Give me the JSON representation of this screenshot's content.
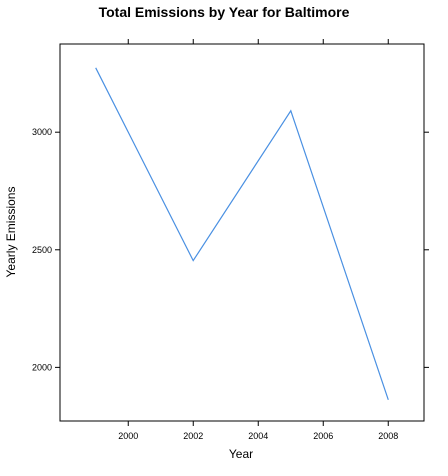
{
  "chart_data": {
    "type": "line",
    "title": "Total Emissions by Year for Baltimore",
    "xlabel": "Year",
    "ylabel": "Yearly Emissions",
    "x": [
      1999,
      2002,
      2005,
      2008
    ],
    "series": [
      {
        "values": [
          3274,
          2454,
          3091,
          1862
        ],
        "color": "#4a90e2"
      }
    ],
    "xlim": [
      1997.9,
      2009.1
    ],
    "ylim": [
      1772,
      3375
    ],
    "xticks": [
      2000,
      2002,
      2004,
      2006,
      2008
    ],
    "xtick_labels": [
      "2000",
      "2002",
      "2004",
      "2006",
      "2008"
    ],
    "yticks": [
      2000,
      2500,
      3000
    ],
    "ytick_labels": [
      "2000",
      "2500",
      "3000"
    ],
    "grid": false,
    "legend": "none"
  }
}
